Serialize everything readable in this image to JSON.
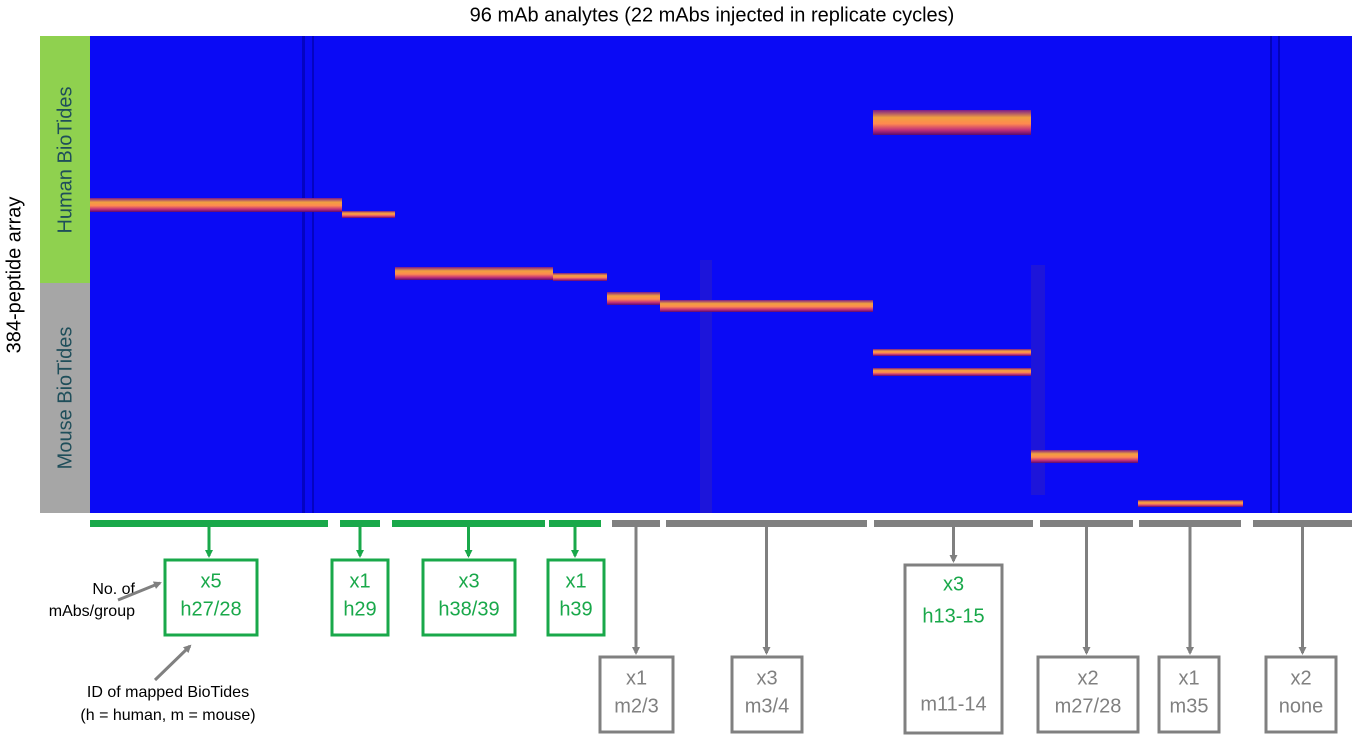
{
  "title": "96 mAb analytes (22 mAbs injected in replicate cycles)",
  "y_axis_label": "384-peptide array",
  "row_groups": [
    "Human BioTides",
    "Mouse BioTides"
  ],
  "groups": [
    {
      "count": "x5",
      "ids": [
        "h27/28"
      ]
    },
    {
      "count": "x1",
      "ids": [
        "h29"
      ]
    },
    {
      "count": "x3",
      "ids": [
        "h38/39"
      ]
    },
    {
      "count": "x1",
      "ids": [
        "h39"
      ]
    },
    {
      "count": "x1",
      "ids": [
        "m2/3"
      ]
    },
    {
      "count": "x3",
      "ids": [
        "m3/4"
      ]
    },
    {
      "count": "x3",
      "ids": [
        "h13-15",
        "m11-14"
      ]
    },
    {
      "count": "x2",
      "ids": [
        "m27/28"
      ]
    },
    {
      "count": "x1",
      "ids": [
        "m35"
      ]
    },
    {
      "count": "x2",
      "ids": [
        "none"
      ]
    }
  ],
  "notes": {
    "count_note": [
      "No. of",
      "mAbs/group"
    ],
    "id_note": [
      "ID of mapped BioTides",
      "(h = human, m = mouse)"
    ]
  }
}
